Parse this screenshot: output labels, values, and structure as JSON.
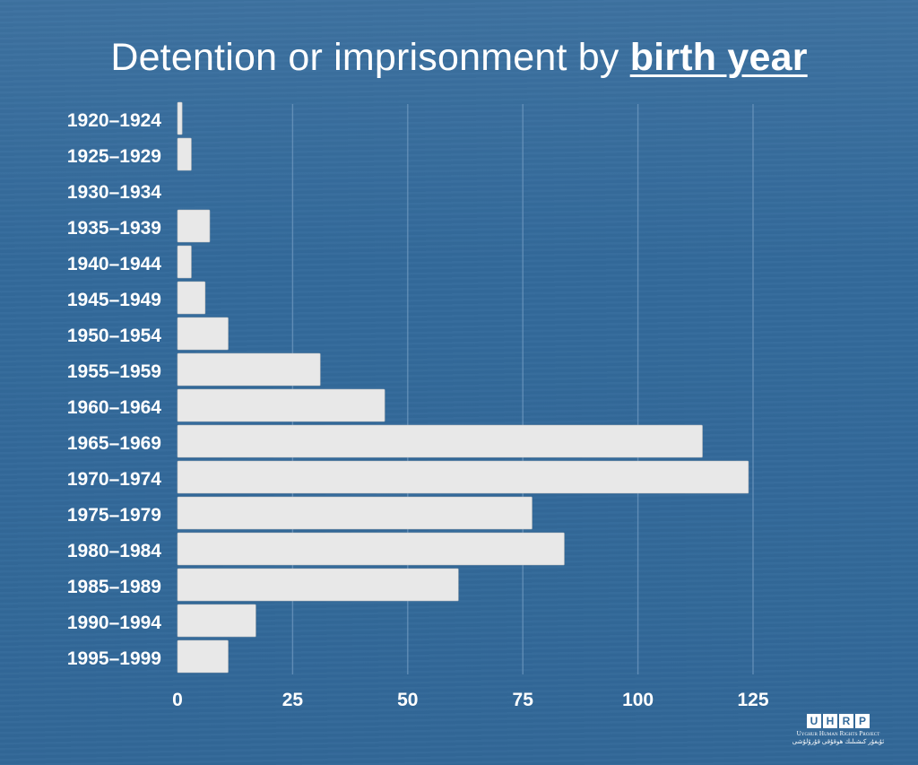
{
  "header": {
    "title_prefix": "Detention or imprisonment by ",
    "title_emphasis": "birth year"
  },
  "chart_data": {
    "type": "bar",
    "orientation": "horizontal",
    "title": "Detention or imprisonment by birth year",
    "xlabel": "",
    "ylabel": "",
    "categories": [
      "1920–1924",
      "1925–1929",
      "1930–1934",
      "1935–1939",
      "1940–1944",
      "1945–1949",
      "1950–1954",
      "1955–1959",
      "1960–1964",
      "1965–1969",
      "1970–1974",
      "1975–1979",
      "1980–1984",
      "1985–1989",
      "1990–1994",
      "1995–1999"
    ],
    "values": [
      1,
      3,
      0,
      7,
      3,
      6,
      11,
      31,
      45,
      114,
      124,
      77,
      84,
      61,
      17,
      11
    ],
    "xlim": [
      0,
      125
    ],
    "xticks": [
      0,
      25,
      50,
      75,
      100,
      125
    ],
    "grid": true,
    "legend": "none",
    "colors": {
      "background": "#336a9b",
      "bar": "#e8e8e8",
      "grid": "#6f98bf",
      "text": "#ffffff"
    }
  },
  "logo": {
    "letters": [
      "U",
      "H",
      "R",
      "P"
    ],
    "name": "Uyghur Human Rights Project",
    "native_name": "ئۇيغۇر كىشىلىك ھوقۇقى قۇرۇلۇشى"
  }
}
